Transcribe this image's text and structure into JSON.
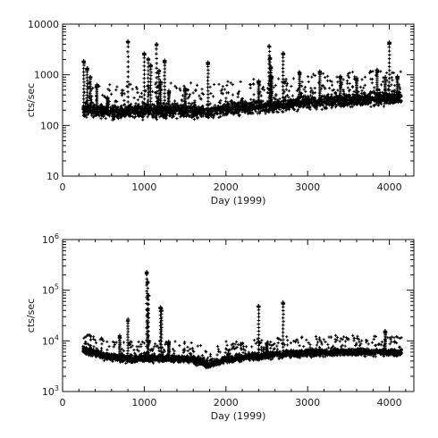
{
  "chart_data": [
    {
      "type": "scatter",
      "title": "",
      "xlabel": "Day (1999)",
      "ylabel": "cts/sec",
      "xlim": [
        0,
        4300
      ],
      "ylim": [
        10,
        10000
      ],
      "yscale": "log",
      "xticks": [
        0,
        1000,
        2000,
        3000,
        4000
      ],
      "xtick_labels": [
        "0",
        "1000",
        "2000",
        "3000",
        "4000"
      ],
      "yticks": [
        10,
        100,
        1000,
        10000
      ],
      "ytick_labels": [
        "10",
        "100",
        "1000",
        "10000"
      ],
      "marker": "plus",
      "grid": false,
      "baseline_trend": [
        [
          250,
          210
        ],
        [
          600,
          180
        ],
        [
          1000,
          190
        ],
        [
          1500,
          200
        ],
        [
          1800,
          185
        ],
        [
          2000,
          210
        ],
        [
          2500,
          240
        ],
        [
          3000,
          290
        ],
        [
          3500,
          320
        ],
        [
          4000,
          350
        ],
        [
          4150,
          350
        ]
      ],
      "flares": [
        [
          260,
          1800
        ],
        [
          300,
          1300
        ],
        [
          340,
          900
        ],
        [
          420,
          600
        ],
        [
          550,
          350
        ],
        [
          800,
          4500
        ],
        [
          1000,
          2600
        ],
        [
          1050,
          2000
        ],
        [
          1080,
          1500
        ],
        [
          1150,
          4000
        ],
        [
          1180,
          1200
        ],
        [
          1200,
          700
        ],
        [
          1250,
          1800
        ],
        [
          1300,
          450
        ],
        [
          1500,
          500
        ],
        [
          1780,
          1700
        ],
        [
          2400,
          700
        ],
        [
          2530,
          3500
        ],
        [
          2540,
          2100
        ],
        [
          2550,
          1400
        ],
        [
          2560,
          900
        ],
        [
          2700,
          2600
        ],
        [
          2900,
          1100
        ],
        [
          3150,
          1100
        ],
        [
          3400,
          900
        ],
        [
          3600,
          800
        ],
        [
          3850,
          1200
        ],
        [
          3950,
          900
        ],
        [
          4000,
          4200
        ],
        [
          4100,
          900
        ]
      ]
    },
    {
      "type": "scatter",
      "title": "",
      "xlabel": "Day (1999)",
      "ylabel": "cts/sec",
      "xlim": [
        0,
        4300
      ],
      "ylim": [
        1000,
        1000000
      ],
      "yscale": "log",
      "xticks": [
        0,
        1000,
        2000,
        3000,
        4000
      ],
      "xtick_labels": [
        "0",
        "1000",
        "2000",
        "3000",
        "4000"
      ],
      "yticks": [
        1000,
        10000,
        100000,
        1000000
      ],
      "ytick_labels": [
        {
          "base": "10",
          "exp": "3"
        },
        {
          "base": "10",
          "exp": "4"
        },
        {
          "base": "10",
          "exp": "5"
        },
        {
          "base": "10",
          "exp": "6"
        }
      ],
      "marker": "plus",
      "grid": false,
      "baseline_trend": [
        [
          250,
          6800
        ],
        [
          500,
          5000
        ],
        [
          800,
          4400
        ],
        [
          1200,
          4500
        ],
        [
          1600,
          4300
        ],
        [
          1800,
          3400
        ],
        [
          2000,
          4400
        ],
        [
          2500,
          5200
        ],
        [
          3000,
          5800
        ],
        [
          3500,
          6000
        ],
        [
          4000,
          5900
        ],
        [
          4150,
          5800
        ]
      ],
      "flares": [
        [
          700,
          12000
        ],
        [
          800,
          25000
        ],
        [
          1030,
          220000
        ],
        [
          1040,
          140000
        ],
        [
          1050,
          80000
        ],
        [
          1040,
          40000
        ],
        [
          1200,
          45000
        ],
        [
          1210,
          40000
        ],
        [
          1300,
          9000
        ],
        [
          2400,
          48000
        ],
        [
          2500,
          9000
        ],
        [
          2700,
          55000
        ],
        [
          3950,
          15000
        ]
      ]
    }
  ]
}
